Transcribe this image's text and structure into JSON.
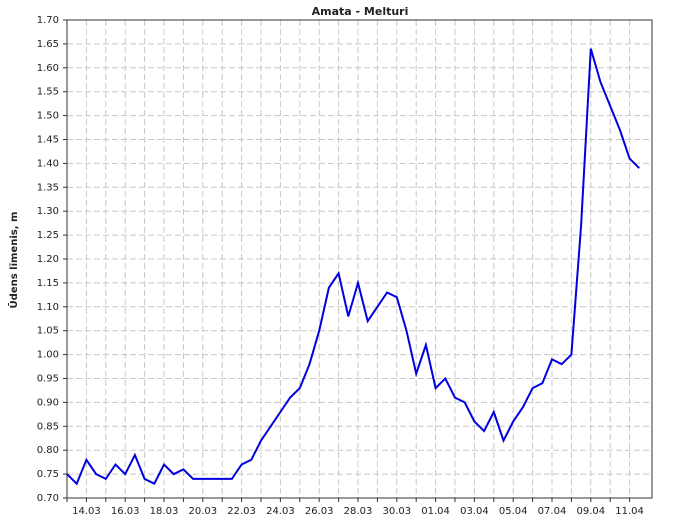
{
  "chart_data": {
    "type": "line",
    "title": "Amata - Melturi",
    "y_label": "Ūdens līmenis, m",
    "categories": [
      null,
      null,
      "14.03",
      null,
      null,
      null,
      "16.03",
      null,
      null,
      null,
      "18.03",
      null,
      null,
      null,
      "20.03",
      null,
      null,
      null,
      "22.03",
      null,
      null,
      null,
      "24.03",
      null,
      null,
      null,
      "26.03",
      null,
      null,
      null,
      "28.03",
      null,
      null,
      null,
      "30.03",
      null,
      null,
      null,
      "01.04",
      null,
      null,
      null,
      "03.04",
      null,
      null,
      null,
      "05.04",
      null,
      null,
      null,
      "07.04",
      null,
      null,
      null,
      "09.04",
      null,
      null,
      null,
      "11.04",
      null
    ],
    "series": [
      {
        "name": "Amata - Melturi",
        "color": "#0000e0",
        "values": [
          0.75,
          0.73,
          0.78,
          0.75,
          0.74,
          0.77,
          0.75,
          0.79,
          0.74,
          0.73,
          0.77,
          0.75,
          0.76,
          0.74,
          0.74,
          0.74,
          0.74,
          0.74,
          0.77,
          0.78,
          0.82,
          0.85,
          0.88,
          0.91,
          0.93,
          0.98,
          1.05,
          1.14,
          1.17,
          1.08,
          1.15,
          1.07,
          1.1,
          1.13,
          1.12,
          1.05,
          0.96,
          1.02,
          0.93,
          0.95,
          0.91,
          0.9,
          0.86,
          0.84,
          0.88,
          0.82,
          0.86,
          0.89,
          0.93,
          0.94,
          0.99,
          0.98,
          1.0,
          1.27,
          1.64,
          1.57,
          1.52,
          1.47,
          1.41,
          1.39
        ]
      }
    ],
    "ylim": [
      0.7,
      1.7
    ],
    "yticks": [
      {
        "value": 0.7,
        "label": "0.70"
      },
      {
        "value": 0.75,
        "label": "0.75"
      },
      {
        "value": 0.8,
        "label": "0.80"
      },
      {
        "value": 0.85,
        "label": "0.85"
      },
      {
        "value": 0.9,
        "label": "0.90"
      },
      {
        "value": 0.95,
        "label": "0.95"
      },
      {
        "value": 1.0,
        "label": "1.00"
      },
      {
        "value": 1.05,
        "label": "1.05"
      },
      {
        "value": 1.1,
        "label": "1.10"
      },
      {
        "value": 1.15,
        "label": "1.15"
      },
      {
        "value": 1.2,
        "label": "1.20"
      },
      {
        "value": 1.25,
        "label": "1.25"
      },
      {
        "value": 1.3,
        "label": "1.30"
      },
      {
        "value": 1.35,
        "label": "1.35"
      },
      {
        "value": 1.4,
        "label": "1.40"
      },
      {
        "value": 1.45,
        "label": "1.45"
      },
      {
        "value": 1.5,
        "label": "1.50"
      },
      {
        "value": 1.55,
        "label": "1.55"
      },
      {
        "value": 1.6,
        "label": "1.60"
      },
      {
        "value": 1.65,
        "label": "1.65"
      },
      {
        "value": 1.7,
        "label": "1.70"
      }
    ],
    "grid": true
  }
}
